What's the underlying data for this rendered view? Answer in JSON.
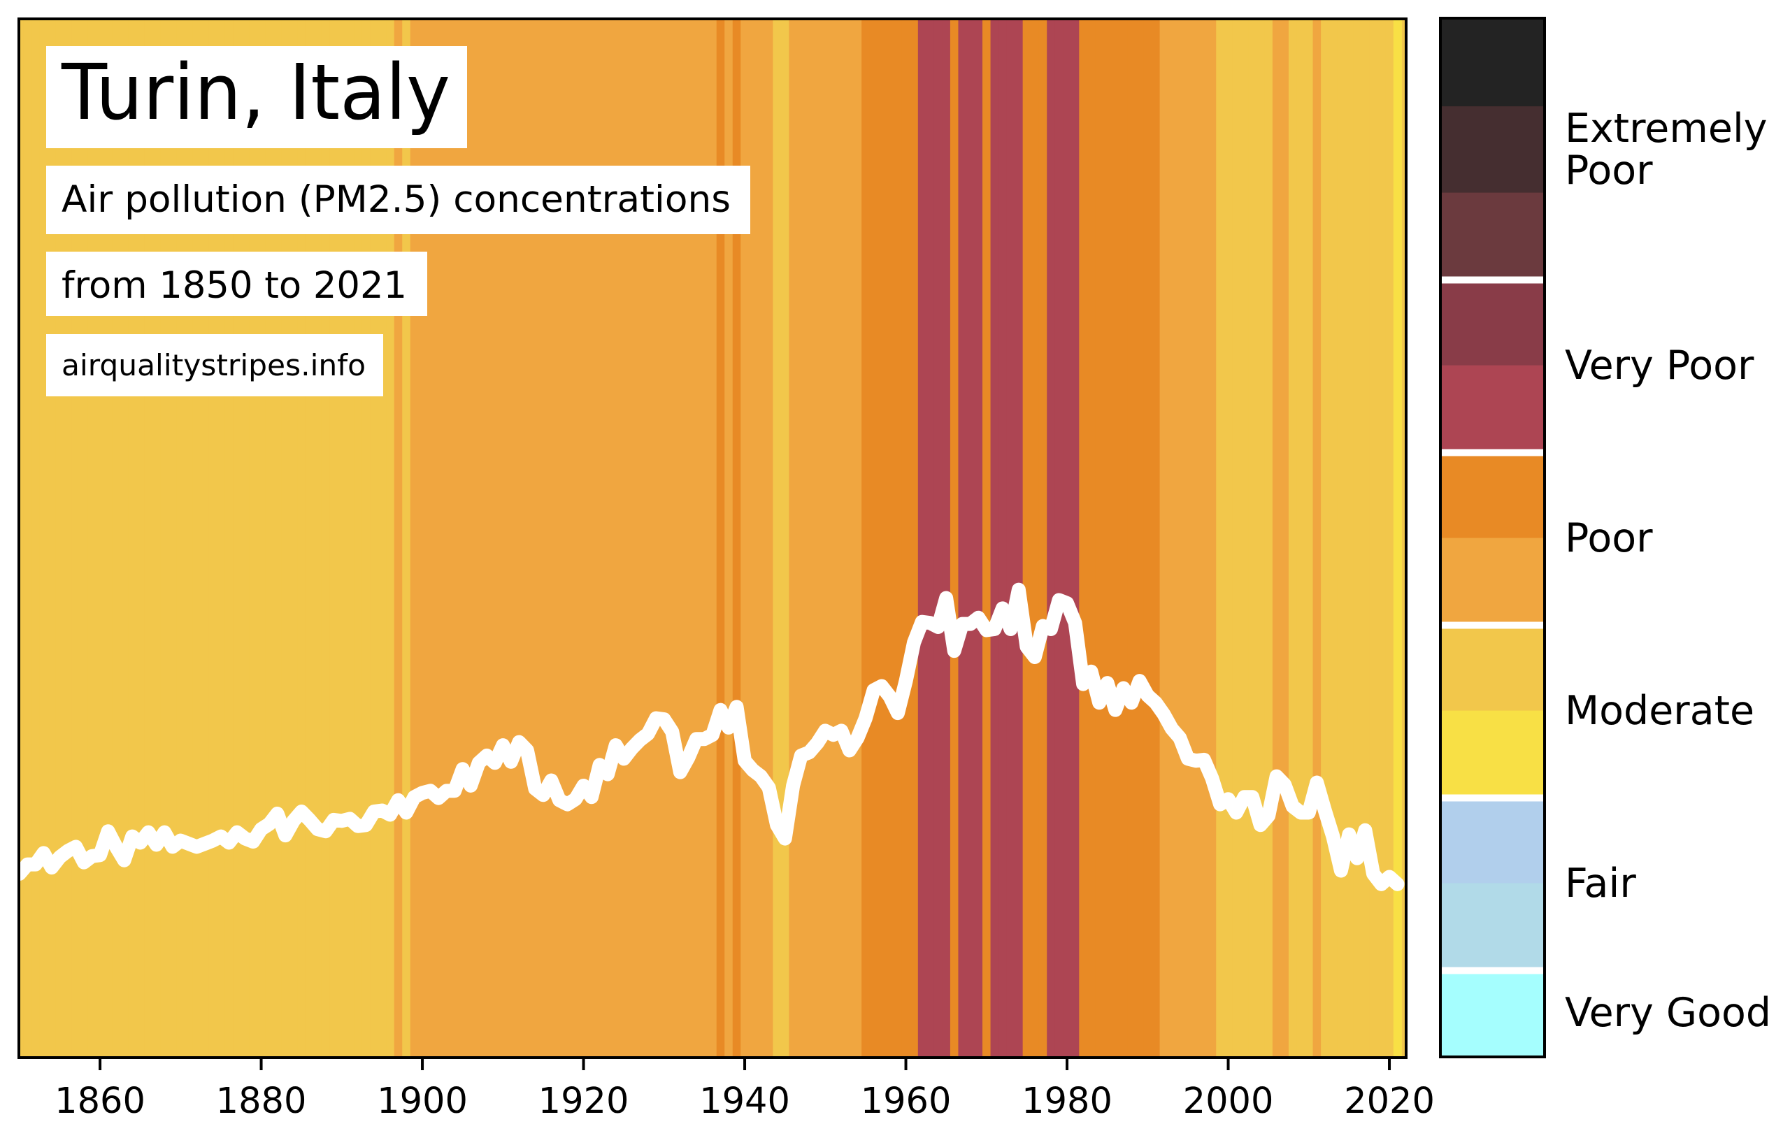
{
  "chart_data": {
    "type": "line",
    "title": "Turin, Italy",
    "subtitle": "Air pollution (PM2.5) concentrations",
    "period": "from 1850 to 2021",
    "source": "airqualitystripes.info",
    "xlabel": "",
    "ylabel": "",
    "xlim": [
      1849.93,
      2022.08
    ],
    "ylim": [
      0,
      100
    ],
    "grid": false,
    "x_ticks": [
      "1860",
      "1880",
      "1900",
      "1920",
      "1940",
      "1960",
      "1980",
      "2000",
      "2020"
    ],
    "series": [
      {
        "name": "PM2.5 concentration",
        "color": "#ffffff",
        "x": [
          1850,
          1851,
          1852,
          1853,
          1854,
          1855,
          1856,
          1857,
          1858,
          1859,
          1860,
          1861,
          1862,
          1863,
          1864,
          1865,
          1866,
          1867,
          1868,
          1869,
          1870,
          1871,
          1872,
          1873,
          1874,
          1875,
          1876,
          1877,
          1878,
          1879,
          1880,
          1881,
          1882,
          1883,
          1884,
          1885,
          1886,
          1887,
          1888,
          1889,
          1890,
          1891,
          1892,
          1893,
          1894,
          1895,
          1896,
          1897,
          1898,
          1899,
          1900,
          1901,
          1902,
          1903,
          1904,
          1905,
          1906,
          1907,
          1908,
          1909,
          1910,
          1911,
          1912,
          1913,
          1914,
          1915,
          1916,
          1917,
          1918,
          1919,
          1920,
          1921,
          1922,
          1923,
          1924,
          1925,
          1926,
          1927,
          1928,
          1929,
          1930,
          1931,
          1932,
          1933,
          1934,
          1935,
          1936,
          1937,
          1938,
          1939,
          1940,
          1941,
          1942,
          1943,
          1944,
          1945,
          1946,
          1947,
          1948,
          1949,
          1950,
          1951,
          1952,
          1953,
          1954,
          1955,
          1956,
          1957,
          1958,
          1959,
          1960,
          1961,
          1962,
          1963,
          1964,
          1965,
          1966,
          1967,
          1968,
          1969,
          1970,
          1971,
          1972,
          1973,
          1974,
          1975,
          1976,
          1977,
          1978,
          1979,
          1980,
          1981,
          1982,
          1983,
          1984,
          1985,
          1986,
          1987,
          1988,
          1989,
          1990,
          1991,
          1992,
          1993,
          1994,
          1995,
          1996,
          1997,
          1998,
          1999,
          2000,
          2001,
          2002,
          2003,
          2004,
          2005,
          2006,
          2007,
          2008,
          2009,
          2010,
          2011,
          2012,
          2013,
          2014,
          2015,
          2016,
          2017,
          2018,
          2019,
          2020,
          2021
        ],
        "values": [
          17.6,
          18.5,
          18.5,
          19.6,
          18.2,
          19.2,
          19.8,
          20.2,
          18.7,
          19.3,
          19.4,
          21.7,
          20.2,
          18.9,
          21.2,
          20.6,
          21.6,
          20.4,
          21.6,
          20.2,
          20.8,
          20.5,
          20.2,
          20.5,
          20.8,
          21.2,
          20.6,
          21.6,
          21.0,
          20.7,
          21.9,
          22.4,
          23.4,
          21.3,
          22.7,
          23.6,
          22.8,
          21.9,
          21.7,
          22.8,
          22.7,
          22.9,
          22.2,
          22.3,
          23.6,
          23.7,
          23.3,
          24.7,
          23.5,
          25.0,
          25.4,
          25.6,
          24.9,
          25.6,
          25.6,
          27.7,
          26.1,
          28.3,
          29.0,
          28.3,
          30.0,
          28.4,
          30.3,
          29.5,
          25.8,
          25.2,
          26.6,
          24.7,
          24.3,
          24.8,
          26.1,
          25.0,
          28.1,
          27.2,
          30.0,
          28.7,
          29.7,
          30.5,
          31.1,
          32.6,
          32.5,
          31.3,
          27.4,
          28.8,
          30.6,
          30.6,
          31.0,
          33.4,
          31.7,
          33.7,
          28.5,
          27.6,
          27.0,
          25.9,
          22.3,
          21.0,
          26.1,
          29.0,
          29.3,
          30.2,
          31.4,
          31.0,
          31.4,
          29.5,
          30.7,
          32.6,
          35.3,
          35.7,
          34.7,
          33.1,
          36.2,
          39.9,
          41.9,
          41.8,
          41.4,
          44.2,
          39.1,
          41.7,
          41.7,
          42.3,
          41.1,
          41.2,
          43.2,
          41.2,
          45.0,
          39.5,
          38.5,
          41.5,
          41.2,
          44.0,
          43.7,
          41.8,
          35.9,
          37.1,
          34.1,
          36.0,
          33.4,
          35.5,
          34.1,
          36.2,
          34.8,
          34.1,
          33.0,
          31.6,
          30.7,
          28.7,
          28.5,
          28.6,
          26.8,
          24.3,
          24.8,
          23.5,
          25.0,
          25.0,
          22.3,
          23.2,
          27.0,
          26.2,
          24.1,
          23.5,
          23.5,
          26.4,
          23.7,
          21.2,
          17.9,
          21.4,
          19.1,
          21.8,
          17.6,
          16.6,
          17.3,
          16.6
        ]
      }
    ],
    "stripes": [
      {
        "from": 1850,
        "to": 1896,
        "level": "moderate_high"
      },
      {
        "from": 1897,
        "to": 1897,
        "level": "poor_low"
      },
      {
        "from": 1898,
        "to": 1898,
        "level": "moderate_high"
      },
      {
        "from": 1899,
        "to": 1936,
        "level": "poor_low"
      },
      {
        "from": 1937,
        "to": 1937,
        "level": "poor_high"
      },
      {
        "from": 1938,
        "to": 1938,
        "level": "poor_low"
      },
      {
        "from": 1939,
        "to": 1939,
        "level": "poor_high"
      },
      {
        "from": 1940,
        "to": 1943,
        "level": "poor_low"
      },
      {
        "from": 1944,
        "to": 1945,
        "level": "moderate_high"
      },
      {
        "from": 1946,
        "to": 1954,
        "level": "poor_low"
      },
      {
        "from": 1955,
        "to": 1961,
        "level": "poor_high"
      },
      {
        "from": 1962,
        "to": 1965,
        "level": "very_poor_low"
      },
      {
        "from": 1966,
        "to": 1966,
        "level": "poor_high"
      },
      {
        "from": 1967,
        "to": 1969,
        "level": "very_poor_low"
      },
      {
        "from": 1970,
        "to": 1970,
        "level": "poor_high"
      },
      {
        "from": 1971,
        "to": 1974,
        "level": "very_poor_low"
      },
      {
        "from": 1975,
        "to": 1977,
        "level": "poor_high"
      },
      {
        "from": 1978,
        "to": 1981,
        "level": "very_poor_low"
      },
      {
        "from": 1982,
        "to": 1991,
        "level": "poor_high"
      },
      {
        "from": 1992,
        "to": 1998,
        "level": "poor_low"
      },
      {
        "from": 1999,
        "to": 2005,
        "level": "moderate_high"
      },
      {
        "from": 2006,
        "to": 2007,
        "level": "poor_low"
      },
      {
        "from": 2008,
        "to": 2010,
        "level": "moderate_high"
      },
      {
        "from": 2011,
        "to": 2011,
        "level": "poor_low"
      },
      {
        "from": 2012,
        "to": 2020,
        "level": "moderate_high"
      },
      {
        "from": 2021,
        "to": 2021,
        "level": "moderate_low"
      }
    ],
    "colorbar": {
      "segments_bottom_to_top": [
        {
          "level": "very_good",
          "color": "#a5fefe"
        },
        {
          "level": "fair_low",
          "color": "#b1dae8"
        },
        {
          "level": "fair_high",
          "color": "#b1cfec"
        },
        {
          "level": "moderate_low",
          "color": "#f8e045"
        },
        {
          "level": "moderate_high",
          "color": "#f2c74b"
        },
        {
          "level": "poor_low",
          "color": "#f0a640"
        },
        {
          "level": "poor_high",
          "color": "#e88a25"
        },
        {
          "level": "very_poor_low",
          "color": "#ad4553"
        },
        {
          "level": "very_poor_high",
          "color": "#893c48"
        },
        {
          "level": "extremely_poor_low",
          "color": "#6b3a3e"
        },
        {
          "level": "extremely_poor_mid",
          "color": "#452e30"
        },
        {
          "level": "extremely_poor_high",
          "color": "#232323"
        }
      ],
      "labels": [
        {
          "lines": [
            "Extremely",
            "Poor"
          ]
        },
        {
          "text": "Very Poor"
        },
        {
          "text": "Poor"
        },
        {
          "text": "Moderate"
        },
        {
          "text": "Fair"
        },
        {
          "text": "Very Good"
        }
      ],
      "separator_color": "#ffffff"
    }
  }
}
